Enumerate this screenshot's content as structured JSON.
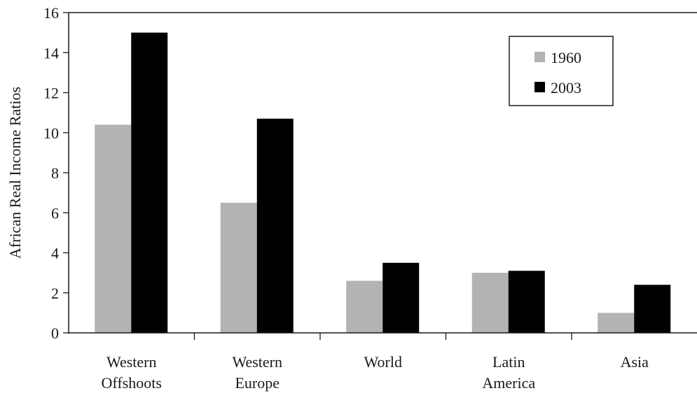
{
  "chart_data": {
    "type": "bar",
    "ylabel": "African Real Income Ratios",
    "xlabel": "",
    "ylim": [
      0,
      16
    ],
    "yticks": [
      0,
      2,
      4,
      6,
      8,
      10,
      12,
      14,
      16
    ],
    "categories": [
      [
        "Western",
        "Offshoots"
      ],
      [
        "Western",
        "Europe"
      ],
      [
        "World"
      ],
      [
        "Latin",
        "America"
      ],
      [
        "Asia"
      ]
    ],
    "series": [
      {
        "name": "1960",
        "color": "#b3b3b3",
        "values": [
          10.4,
          6.5,
          2.6,
          3.0,
          1.0
        ]
      },
      {
        "name": "2003",
        "color": "#000000",
        "values": [
          15.0,
          10.7,
          3.5,
          3.1,
          2.4
        ]
      }
    ],
    "legend": {
      "position": "top-right",
      "border": true
    },
    "grid": false
  }
}
